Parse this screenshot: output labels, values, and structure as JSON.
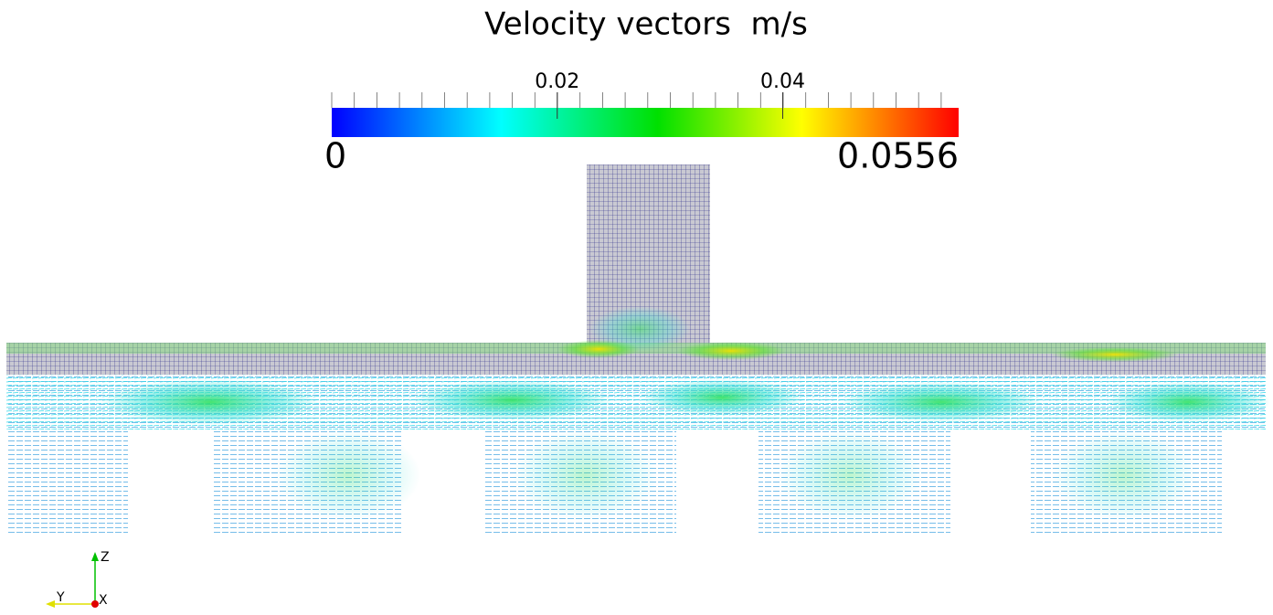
{
  "title": "Velocity vectors  m/s",
  "colorbar": {
    "min": 0,
    "max": 0.0556,
    "ticks": [
      0.02,
      0.04
    ]
  },
  "axes": {
    "z": "Z",
    "y": "Y",
    "x": "X"
  }
}
